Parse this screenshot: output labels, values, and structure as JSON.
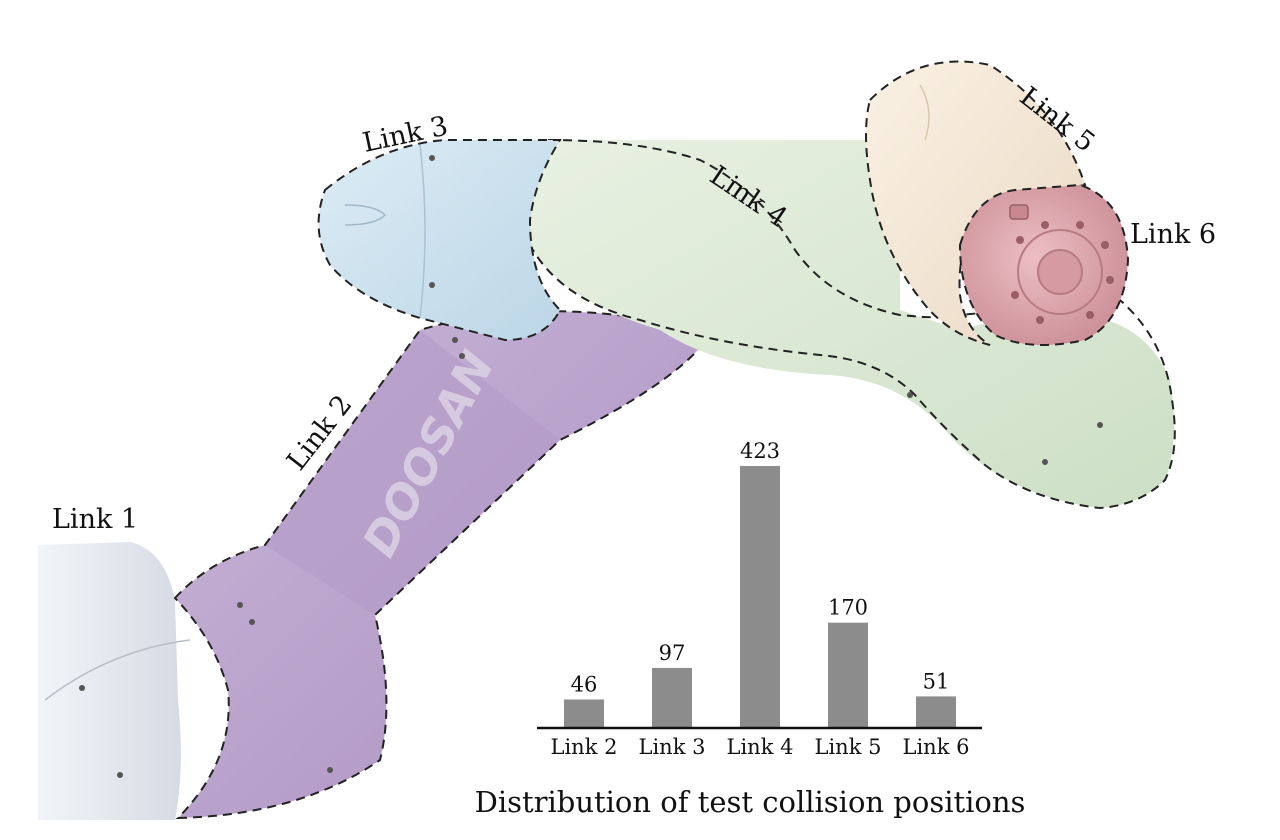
{
  "labels": {
    "link1": "Link 1",
    "link2": "Link 2",
    "link3": "Link 3",
    "link4": "Link 4",
    "link5": "Link 5",
    "link6": "Link 6"
  },
  "brand": "DOOSAN",
  "colors": {
    "link1": "#e4e8ef",
    "link2": "#b9a2cc",
    "link3": "#cfe3ef",
    "link4": "#dcead5",
    "link5": "#f5e8d6",
    "link6": "#dda6ad",
    "bar": "#8c8c8c",
    "baseline": "#111111"
  },
  "chart_data": {
    "type": "bar",
    "title": "Distribution of test collision positions",
    "categories": [
      "Link 2",
      "Link 3",
      "Link 4",
      "Link 5",
      "Link 6"
    ],
    "values": [
      46,
      97,
      423,
      170,
      51
    ],
    "ylim": [
      0,
      423
    ],
    "grid": false,
    "data_labels": true
  }
}
